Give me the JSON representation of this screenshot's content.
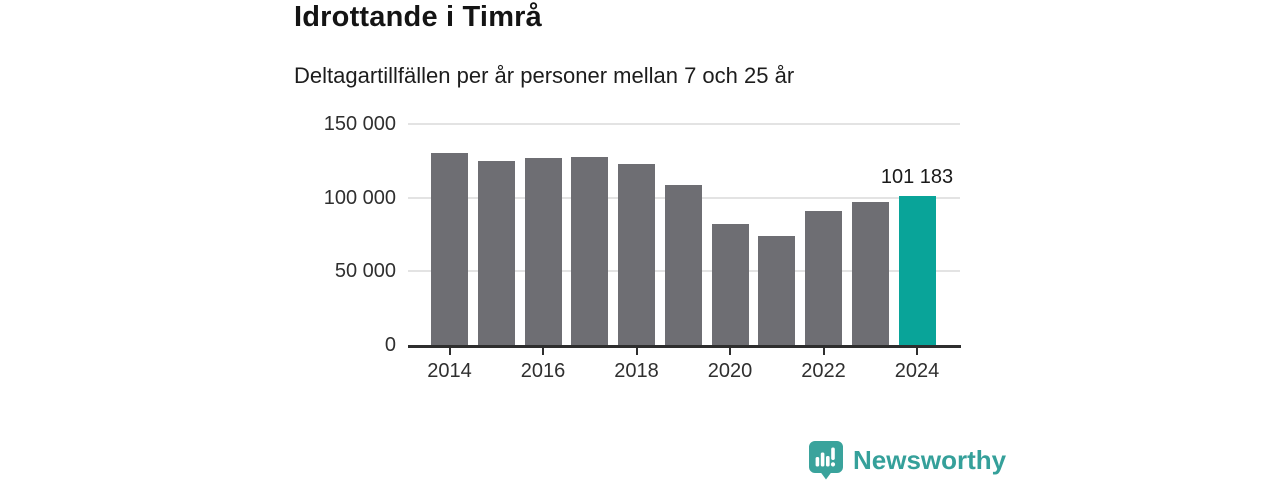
{
  "header": {
    "title": "Idrottande i Timrå",
    "subtitle": "Deltagartillfällen per år personer mellan 7 och 25 år"
  },
  "chart_data": {
    "type": "bar",
    "title": "Idrottande i Timrå",
    "subtitle": "Deltagartillfällen per år personer mellan 7 och 25 år",
    "categories": [
      2014,
      2015,
      2016,
      2017,
      2018,
      2019,
      2020,
      2021,
      2022,
      2023,
      2024
    ],
    "values": [
      130500,
      125200,
      127000,
      127500,
      123000,
      108700,
      81900,
      74000,
      90800,
      97000,
      101183
    ],
    "highlight": {
      "index": 10,
      "label": "101 183",
      "color": "#09a499"
    },
    "bar_color": "#6e6e73",
    "grid_color": "#e3e3e3",
    "axis_color": "#2e2e2e",
    "ylim": [
      0,
      150000
    ],
    "yticks": [
      {
        "value": 0,
        "label": "0"
      },
      {
        "value": 50000,
        "label": "50 000"
      },
      {
        "value": 100000,
        "label": "100 000"
      },
      {
        "value": 150000,
        "label": "150 000"
      }
    ],
    "xticks": [
      {
        "value": 2014,
        "label": "2014"
      },
      {
        "value": 2016,
        "label": "2016"
      },
      {
        "value": 2018,
        "label": "2018"
      },
      {
        "value": 2020,
        "label": "2020"
      },
      {
        "value": 2022,
        "label": "2022"
      },
      {
        "value": 2024,
        "label": "2024"
      }
    ],
    "grid": "horizontal",
    "legend": "none"
  },
  "footer": {
    "brand": "Newsworthy",
    "brand_color": "#35a09a",
    "logo_icon": "bar-chart-speech-bubble-icon"
  }
}
